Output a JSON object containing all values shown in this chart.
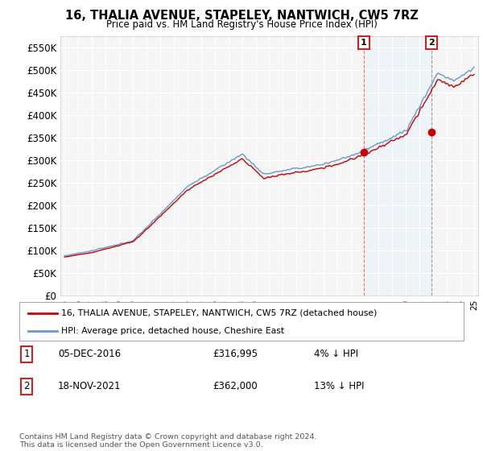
{
  "title": "16, THALIA AVENUE, STAPELEY, NANTWICH, CW5 7RZ",
  "subtitle": "Price paid vs. HM Land Registry's House Price Index (HPI)",
  "ylim": [
    0,
    575000
  ],
  "yticks": [
    0,
    50000,
    100000,
    150000,
    200000,
    250000,
    300000,
    350000,
    400000,
    450000,
    500000,
    550000
  ],
  "ytick_labels": [
    "£0",
    "£50K",
    "£100K",
    "£150K",
    "£200K",
    "£250K",
    "£300K",
    "£350K",
    "£400K",
    "£450K",
    "£500K",
    "£550K"
  ],
  "background_color": "#ffffff",
  "plot_bg_color": "#f5f5f5",
  "grid_color": "#ffffff",
  "hpi_color": "#6699cc",
  "hpi_fill_color": "#ddeeff",
  "price_color": "#cc0000",
  "sale1_year": 2016.92,
  "sale1_price": 316995,
  "sale2_year": 2021.88,
  "sale2_price": 362000,
  "legend_entry1": "16, THALIA AVENUE, STAPELEY, NANTWICH, CW5 7RZ (detached house)",
  "legend_entry2": "HPI: Average price, detached house, Cheshire East",
  "footer": "Contains HM Land Registry data © Crown copyright and database right 2024.\nThis data is licensed under the Open Government Licence v3.0."
}
